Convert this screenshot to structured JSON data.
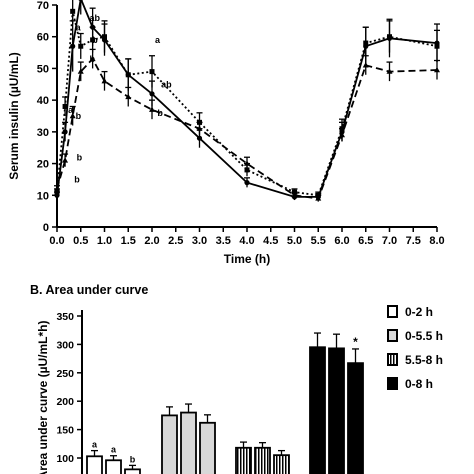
{
  "chart_data": [
    {
      "type": "line",
      "xlabel": "Time (h)",
      "ylabel": "Serum insulin (µU/mL)",
      "xlim": [
        0,
        8
      ],
      "ylim": [
        0,
        70
      ],
      "x_ticks": [
        "0.0",
        "0.5",
        "1.0",
        "1.5",
        "2.0",
        "2.5",
        "3.0",
        "3.5",
        "4.0",
        "4.5",
        "5.0",
        "5.5",
        "6.0",
        "6.5",
        "7.0",
        "7.5",
        "8.0"
      ],
      "y_ticks": [
        "0",
        "10",
        "20",
        "30",
        "40",
        "50",
        "60",
        "70"
      ],
      "x": [
        0,
        0.17,
        0.33,
        0.5,
        0.75,
        1.0,
        1.5,
        2.0,
        3.0,
        4.0,
        5.0,
        5.5,
        6.0,
        6.5,
        7.0,
        8.0
      ],
      "series": [
        {
          "style": "solid",
          "marker": "circle",
          "values": [
            10,
            30,
            57,
            72,
            63,
            59,
            48,
            42,
            28,
            14,
            9.5,
            9.5,
            30,
            57,
            59.5,
            58
          ],
          "errors": [
            1,
            3,
            8,
            5,
            6,
            5,
            5,
            4,
            3,
            1.5,
            1,
            1,
            3,
            6,
            6,
            6
          ]
        },
        {
          "style": "dotted",
          "marker": "square",
          "values": [
            11,
            38,
            68,
            57,
            59,
            60,
            48,
            49,
            33,
            18,
            11,
            10,
            31,
            58,
            60,
            57
          ],
          "errors": [
            1,
            3,
            4,
            4,
            4,
            5,
            5,
            5,
            3,
            2,
            1,
            1,
            3,
            5,
            5,
            5
          ]
        },
        {
          "style": "dashed",
          "marker": "triangle",
          "values": [
            12,
            21,
            35,
            49,
            53,
            46,
            41,
            37,
            31,
            20,
            10,
            9,
            29,
            51,
            49,
            49.5
          ],
          "errors": [
            1,
            2,
            3,
            3,
            3,
            3,
            3,
            3,
            2,
            2,
            1,
            1,
            2,
            3,
            3,
            3
          ]
        }
      ],
      "annotations": [
        {
          "text": "a",
          "x": 0.17,
          "y": 36
        },
        {
          "text": "b",
          "x": 0.33,
          "y": 34
        },
        {
          "text": "b",
          "x": 0.35,
          "y": 21
        },
        {
          "text": "b",
          "x": 0.3,
          "y": 14
        },
        {
          "text": "a",
          "x": 0.33,
          "y": 62
        },
        {
          "text": "ab",
          "x": 0.62,
          "y": 65
        },
        {
          "text": "b",
          "x": 0.68,
          "y": 58
        },
        {
          "text": "b",
          "x": 0.62,
          "y": 52
        },
        {
          "text": "a",
          "x": 2.0,
          "y": 58
        },
        {
          "text": "ab",
          "x": 2.13,
          "y": 44
        },
        {
          "text": "b",
          "x": 2.05,
          "y": 35
        }
      ]
    },
    {
      "type": "bar",
      "title": "B. Area under curve",
      "ylabel": "Area under curve (µU/mL*h)",
      "ylim": [
        100,
        350
      ],
      "y_ticks": [
        "100",
        "150",
        "200",
        "250",
        "300",
        "350"
      ],
      "legend": [
        "0-2 h",
        "0-5.5 h",
        "5.5-8 h",
        "0-8 h"
      ],
      "legend_position": "right",
      "groups": [
        {
          "legend": "0-2 h",
          "fill": "#ffffff",
          "values": [
            103,
            96,
            80
          ],
          "errors": [
            10,
            8,
            7
          ],
          "labels": [
            "a",
            "a",
            "b"
          ]
        },
        {
          "legend": "0-5.5 h",
          "fill": "#d8d8d8",
          "values": [
            175,
            180,
            162
          ],
          "errors": [
            15,
            15,
            14
          ],
          "labels": [
            "",
            "",
            ""
          ]
        },
        {
          "legend": "5.5-8 h",
          "fill": "hatch",
          "values": [
            118,
            118,
            105
          ],
          "errors": [
            10,
            9,
            8
          ],
          "labels": [
            "",
            "",
            ""
          ]
        },
        {
          "legend": "0-8 h",
          "fill": "#000000",
          "values": [
            295,
            293,
            267
          ],
          "errors": [
            25,
            25,
            25
          ],
          "labels": [
            "",
            "",
            "*"
          ]
        }
      ]
    }
  ]
}
